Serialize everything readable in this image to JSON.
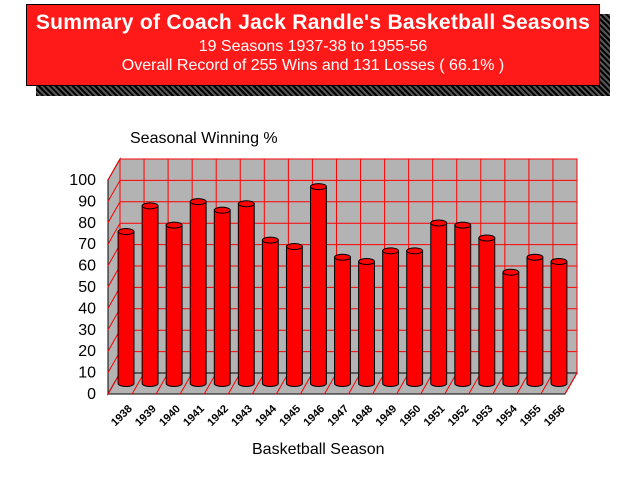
{
  "header": {
    "title": "Summary of Coach Jack Randle's Basketball Seasons",
    "subtitle": "19 Seasons   1937-38 to 1955-56",
    "record": "Overall Record of 255 Wins and 131 Losses ( 66.1% )"
  },
  "colors": {
    "bar": "#ff0000",
    "banner": "#ff1a1a",
    "wall": "#b3b3b3",
    "grid": "#ff0000"
  },
  "chart_data": {
    "type": "bar",
    "ylabel": "Seasonal Winning %",
    "xlabel": "Basketball Season",
    "ylim": [
      0,
      100
    ],
    "yticks": [
      0,
      10,
      20,
      30,
      40,
      50,
      60,
      70,
      80,
      90,
      100
    ],
    "grid": true,
    "categories": [
      "1938",
      "1939",
      "1940",
      "1941",
      "1942",
      "1943",
      "1944",
      "1945",
      "1946",
      "1947",
      "1948",
      "1949",
      "1950",
      "1951",
      "1952",
      "1953",
      "1954",
      "1955",
      "1956"
    ],
    "values": [
      71,
      83,
      74,
      85,
      81,
      84,
      67,
      64,
      92,
      59,
      57,
      62,
      62,
      75,
      74,
      68,
      52,
      59,
      57
    ]
  }
}
